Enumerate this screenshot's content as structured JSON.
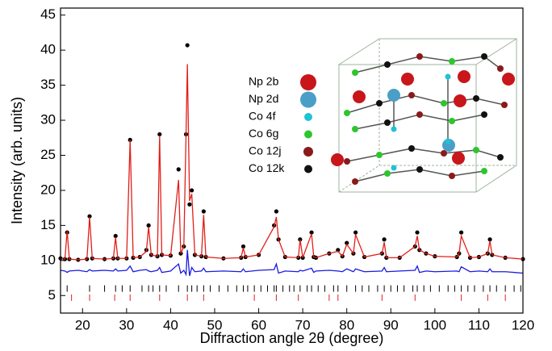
{
  "chart_data": {
    "type": "line",
    "xlabel": "Diffraction angle 2θ (degree)",
    "ylabel": "Intensity (arb. units)",
    "xlim": [
      15,
      120
    ],
    "ylim": [
      2.5,
      46
    ],
    "xticks": [
      20,
      30,
      40,
      50,
      60,
      70,
      80,
      90,
      100,
      110,
      120
    ],
    "yticks": [
      5,
      10,
      15,
      20,
      25,
      30,
      35,
      40,
      45
    ],
    "x": [
      15,
      16,
      16.5,
      17,
      19,
      21,
      21.6,
      22.2,
      25,
      27,
      27.5,
      28,
      30,
      30.8,
      31.5,
      33,
      34.5,
      35,
      35.6,
      37,
      37.5,
      38,
      40,
      41.8,
      42.3,
      43,
      43.5,
      43.8,
      44.3,
      44.8,
      45.5,
      47,
      47.5,
      48,
      52,
      56,
      56.5,
      57,
      60,
      63.5,
      64,
      64.5,
      66,
      69,
      69.4,
      70,
      72,
      72.5,
      73,
      76,
      78,
      79,
      80,
      81.5,
      82,
      84,
      88,
      88.5,
      89,
      92,
      95.5,
      96,
      96.5,
      98,
      100,
      105,
      105.5,
      106,
      108,
      110,
      112,
      112.5,
      113,
      116,
      120
    ],
    "series": [
      {
        "style": "dots",
        "color": "#000000",
        "values": [
          10.3,
          10.2,
          14,
          10.2,
          10.1,
          10.2,
          16.3,
          10.3,
          10.2,
          10.3,
          13.5,
          10.3,
          10.3,
          27.2,
          10.4,
          10.5,
          11.5,
          15,
          10.8,
          10.6,
          28,
          10.8,
          10.7,
          23,
          11,
          12,
          28,
          40.7,
          18,
          20,
          10.8,
          10.6,
          17,
          10.5,
          10.3,
          10.4,
          12,
          10.5,
          10.8,
          15,
          17,
          13,
          10.5,
          10.4,
          13,
          10.4,
          14,
          10.5,
          10.4,
          11,
          11.5,
          10.6,
          12.5,
          11,
          14,
          10.5,
          11,
          13,
          10.4,
          10.4,
          12,
          14,
          11.5,
          11,
          10.6,
          10.5,
          11,
          14,
          10.4,
          10.5,
          11,
          13,
          10.8,
          10.4,
          10.2
        ]
      },
      {
        "style": "line",
        "color": "#e0201a",
        "values": [
          10.2,
          10.2,
          14.2,
          10.2,
          10.1,
          10.2,
          16.2,
          10.3,
          10.2,
          10.3,
          13.3,
          10.3,
          10.3,
          27.2,
          10.4,
          10.5,
          11.3,
          14.8,
          10.8,
          10.6,
          27.8,
          10.8,
          10.7,
          21.5,
          11,
          12,
          28,
          38,
          18.5,
          19.5,
          10.8,
          10.6,
          16.5,
          10.5,
          10.3,
          10.4,
          11.8,
          10.5,
          10.8,
          14.8,
          16.2,
          13,
          10.5,
          10.4,
          13,
          10.4,
          13.8,
          10.5,
          10.4,
          11,
          11.3,
          10.6,
          12.3,
          11,
          13.7,
          10.5,
          11,
          12.6,
          10.4,
          10.4,
          12,
          13.5,
          11.5,
          11,
          10.6,
          10.5,
          11,
          13.5,
          10.4,
          10.5,
          11,
          12.8,
          10.8,
          10.4,
          10.2
        ]
      },
      {
        "style": "line",
        "color": "#1a1ae0",
        "values": [
          8.6,
          8.5,
          8.3,
          8.5,
          8.6,
          8.4,
          8.7,
          8.5,
          8.6,
          8.5,
          8.8,
          8.5,
          8.6,
          9.2,
          8.4,
          8.6,
          8.7,
          8.5,
          8.4,
          8.6,
          9.0,
          8.3,
          8.5,
          9.5,
          8.2,
          8.6,
          8.0,
          11.5,
          7.8,
          9.0,
          8.4,
          8.5,
          8.9,
          8.4,
          8.5,
          8.4,
          8.8,
          8.4,
          8.6,
          8.7,
          9.5,
          8.2,
          8.5,
          8.4,
          8.6,
          8.5,
          8.9,
          8.3,
          8.5,
          8.6,
          8.5,
          8.4,
          8.8,
          8.4,
          8.8,
          8.4,
          8.5,
          9.0,
          8.4,
          8.5,
          8.6,
          9.2,
          8.3,
          8.5,
          8.4,
          8.5,
          8.4,
          9.1,
          8.4,
          8.5,
          8.4,
          8.8,
          8.4,
          8.4,
          8.2
        ]
      }
    ],
    "bragg_ticks": [
      {
        "color": "#000000",
        "level": 6,
        "values": [
          16.5,
          21.6,
          25,
          27.5,
          29,
          30.8,
          33.5,
          35,
          36,
          37.5,
          39,
          41.8,
          43.8,
          44.8,
          46,
          47.5,
          49,
          51,
          53,
          55,
          56.5,
          57.5,
          59,
          60.5,
          62,
          63.5,
          64,
          65.5,
          67,
          68,
          69.4,
          71,
          72,
          73.5,
          75,
          77,
          78,
          80,
          82,
          83.5,
          85,
          87,
          88.5,
          90,
          91.5,
          93,
          95,
          96,
          97.5,
          99,
          101,
          103,
          104.5,
          106,
          107.5,
          109,
          111,
          112.5,
          114,
          116,
          118,
          119.5
        ]
      },
      {
        "color": "#e0201a",
        "level": 4.7,
        "values": [
          17.5,
          21.6,
          27.3,
          30.8,
          37.5,
          43.8,
          47.5,
          59,
          64,
          69,
          76,
          78,
          88,
          95.5,
          106,
          112,
          116
        ]
      }
    ],
    "inset_legend": [
      {
        "label": "Np 2b",
        "color": "#c8161b"
      },
      {
        "label": "Np 2d",
        "color": "#4a9fc7"
      },
      {
        "label": "Co 4f",
        "color": "#1fc2d6"
      },
      {
        "label": "Co 6g",
        "color": "#2dc62d"
      },
      {
        "label": "Co 12j",
        "color": "#8a1a1a"
      },
      {
        "label": "Co 12k",
        "color": "#111111"
      }
    ]
  }
}
